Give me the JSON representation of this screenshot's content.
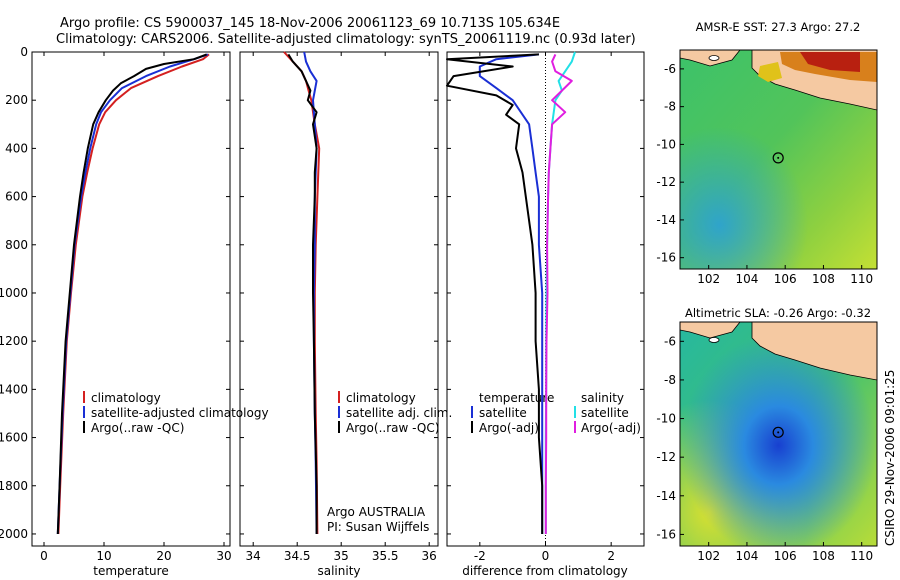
{
  "header": {
    "line1": "Argo profile: CS 5900037_145 18-Nov-2006 20061123_69 10.713S 105.634E",
    "line2": "Climatology: CARS2006. Satellite-adjusted climatology: synTS_20061119.nc (0.93d later)"
  },
  "side_stamp": "CSIRO 29-Nov-2006 09:01:25",
  "colors": {
    "red": "#d42020",
    "blue": "#1a2fd4",
    "black": "#000000",
    "cyan": "#22e0e6",
    "magenta": "#e01ee0",
    "land": "#f5c9a2"
  },
  "chart_data": [
    {
      "type": "line",
      "id": "temperature",
      "xlabel": "temperature",
      "xlim": [
        -2,
        31
      ],
      "ylim": [
        2050,
        0
      ],
      "xticks": [
        "0",
        "10",
        "20",
        "30"
      ],
      "yticks": [
        "0",
        "200",
        "400",
        "600",
        "800",
        "1000",
        "1200",
        "1400",
        "1600",
        "1800",
        "2000"
      ],
      "legend": [
        "climatology",
        "satellite-adjusted climatology",
        "Argo(..raw -QC)"
      ],
      "series": [
        {
          "name": "climatology",
          "color": "red",
          "depth": [
            10,
            30,
            60,
            100,
            150,
            200,
            250,
            300,
            400,
            500,
            600,
            800,
            1000,
            1200,
            1500,
            1800,
            2000
          ],
          "values": [
            27.5,
            26.5,
            23,
            19,
            14.5,
            12,
            10.2,
            9.2,
            8.1,
            7.2,
            6.4,
            5.3,
            4.5,
            3.8,
            3.2,
            2.7,
            2.4
          ]
        },
        {
          "name": "satellite-adjusted climatology",
          "color": "blue",
          "depth": [
            10,
            30,
            60,
            100,
            150,
            200,
            250,
            300,
            400,
            500,
            600,
            800,
            1000,
            1200,
            1500,
            1800,
            2000
          ],
          "values": [
            27.3,
            25,
            21,
            17,
            13,
            11,
            9.5,
            8.7,
            7.7,
            6.9,
            6.2,
            5.1,
            4.4,
            3.7,
            3.1,
            2.6,
            2.3
          ]
        },
        {
          "name": "Argo(..raw -QC)",
          "color": "black",
          "depth": [
            10,
            30,
            50,
            70,
            100,
            130,
            160,
            200,
            250,
            300,
            400,
            500,
            600,
            800,
            1000,
            1200,
            1500,
            1800,
            2000
          ],
          "values": [
            27.1,
            25,
            20,
            17,
            15,
            12.8,
            11.5,
            10.3,
            9.1,
            8.2,
            7.3,
            6.6,
            6.0,
            5.0,
            4.3,
            3.6,
            3.0,
            2.6,
            2.3
          ]
        }
      ]
    },
    {
      "type": "line",
      "id": "salinity",
      "xlabel": "salinity",
      "xlim": [
        33.85,
        36.1
      ],
      "ylim": [
        2050,
        0
      ],
      "xticks": [
        "34",
        "34.5",
        "35",
        "35.5",
        "36"
      ],
      "legend": [
        "climatology",
        "satellite adj. clim.",
        "Argo(..raw -QC)"
      ],
      "annotation": [
        "Argo AUSTRALIA",
        "PI: Susan Wijffels"
      ],
      "series": [
        {
          "name": "climatology",
          "color": "red",
          "depth": [
            0,
            40,
            80,
            120,
            160,
            200,
            300,
            400,
            500,
            600,
            800,
            1000,
            1200,
            1500,
            1700,
            2000
          ],
          "values": [
            34.35,
            34.45,
            34.55,
            34.6,
            34.63,
            34.66,
            34.7,
            34.75,
            34.74,
            34.73,
            34.71,
            34.7,
            34.7,
            34.71,
            34.72,
            34.73
          ]
        },
        {
          "name": "satellite adj. clim.",
          "color": "blue",
          "depth": [
            0,
            40,
            80,
            120,
            160,
            200,
            300,
            400,
            500,
            600,
            800,
            1000,
            1200,
            1500,
            1700,
            2000
          ],
          "values": [
            34.58,
            34.6,
            34.65,
            34.72,
            34.7,
            34.68,
            34.7,
            34.72,
            34.71,
            34.7,
            34.7,
            34.69,
            34.69,
            34.7,
            34.71,
            34.72
          ]
        },
        {
          "name": "Argo(..raw -QC)",
          "color": "black",
          "depth": [
            10,
            40,
            80,
            120,
            160,
            200,
            250,
            300,
            400,
            500,
            600,
            800,
            1000,
            1200,
            1500,
            1800,
            2000
          ],
          "values": [
            34.4,
            34.45,
            34.55,
            34.6,
            34.65,
            34.62,
            34.72,
            34.68,
            34.72,
            34.7,
            34.7,
            34.68,
            34.68,
            34.69,
            34.7,
            34.72,
            34.72
          ]
        }
      ]
    },
    {
      "type": "line",
      "id": "difference",
      "xlabel": "difference from climatology",
      "xlim": [
        -3,
        3
      ],
      "ylim": [
        2050,
        0
      ],
      "xticks": [
        "-2",
        "0",
        "2"
      ],
      "legend": [
        "temperature",
        "satellite",
        "Argo(-adj)",
        "salinity",
        "satellite",
        "Argo(-adj)"
      ],
      "series": [
        {
          "name": "temperature satellite",
          "color": "blue",
          "depth": [
            10,
            30,
            60,
            100,
            150,
            200,
            300,
            400,
            500,
            600,
            800,
            1000,
            1200,
            1400,
            1600,
            1800,
            2000
          ],
          "values": [
            -0.2,
            -1.5,
            -2.0,
            -2.0,
            -1.5,
            -1.0,
            -0.5,
            -0.4,
            -0.3,
            -0.2,
            -0.2,
            -0.1,
            -0.1,
            -0.1,
            -0.1,
            -0.1,
            -0.1
          ]
        },
        {
          "name": "temperature Argo(-adj)",
          "color": "black",
          "depth": [
            10,
            30,
            60,
            100,
            140,
            180,
            220,
            260,
            300,
            400,
            500,
            600,
            800,
            1000,
            1200,
            1400,
            1600,
            1800,
            2000
          ],
          "values": [
            -0.2,
            -3,
            -1,
            -2.8,
            -3,
            -1.5,
            -1.0,
            -1.2,
            -0.8,
            -0.9,
            -0.7,
            -0.6,
            -0.4,
            -0.3,
            -0.3,
            -0.2,
            -0.2,
            -0.1,
            -0.1
          ]
        },
        {
          "name": "salinity satellite",
          "color": "cyan",
          "depth": [
            0,
            40,
            80,
            120,
            160,
            200,
            300,
            400,
            500,
            600,
            800,
            1000,
            1200,
            1400,
            1600,
            1800,
            2000
          ],
          "values": [
            0.9,
            0.8,
            0.6,
            0.4,
            0.5,
            0.3,
            0.2,
            0.15,
            0.1,
            0.08,
            0.05,
            0.03,
            0.02,
            0.02,
            0.01,
            0.01,
            0.01
          ]
        },
        {
          "name": "salinity Argo(-adj)",
          "color": "magenta",
          "depth": [
            10,
            40,
            80,
            120,
            160,
            200,
            250,
            300,
            400,
            500,
            600,
            800,
            1000,
            1200,
            1400,
            1600,
            1800,
            2000
          ],
          "values": [
            0.3,
            0.2,
            0.3,
            0.8,
            0.5,
            0.2,
            0.6,
            0.2,
            0.15,
            0.1,
            0.08,
            0.05,
            0.06,
            0.03,
            0.02,
            0.02,
            0.01,
            0.01
          ]
        }
      ]
    },
    {
      "type": "heatmap",
      "id": "sst_map",
      "title": "AMSR-E SST: 27.3 Argo: 27.2",
      "xlim": [
        100.5,
        110.8
      ],
      "ylim": [
        -16.6,
        -5
      ],
      "xticks": [
        "102",
        "104",
        "106",
        "108",
        "110"
      ],
      "yticks": [
        "-6",
        "-8",
        "-10",
        "-12",
        "-14",
        "-16"
      ],
      "profile_location": [
        105.634,
        -10.713
      ]
    },
    {
      "type": "heatmap",
      "id": "sla_map",
      "title": "Altimetric SLA: -0.26 Argo: -0.32",
      "xlim": [
        100.5,
        110.8
      ],
      "ylim": [
        -16.6,
        -5
      ],
      "xticks": [
        "102",
        "104",
        "106",
        "108",
        "110"
      ],
      "yticks": [
        "-6",
        "-8",
        "-10",
        "-12",
        "-14",
        "-16"
      ],
      "profile_location": [
        105.634,
        -10.713
      ]
    }
  ]
}
